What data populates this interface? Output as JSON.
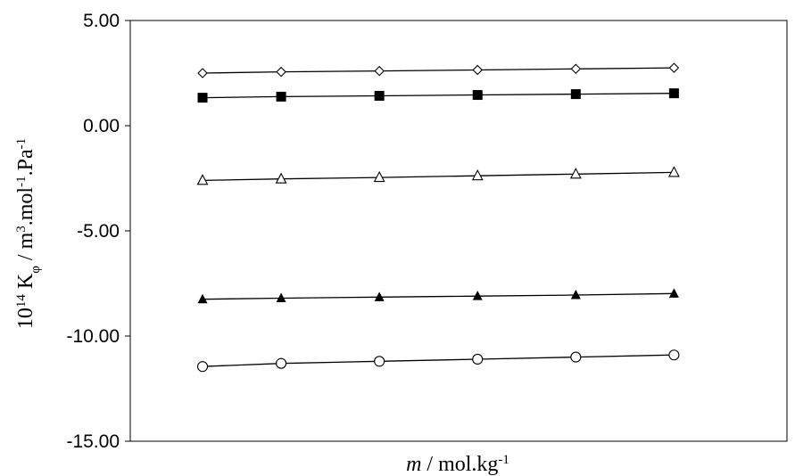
{
  "chart_data": {
    "type": "scatter",
    "title": "",
    "xlabel": {
      "italic": "m",
      "rest": " / mol.kg",
      "sup": "-1"
    },
    "ylabel": {
      "base1": "10",
      "sup1": "14",
      "base2": " K",
      "sub": "φ",
      "base3": " / m",
      "sup2": "3",
      "base4": ".mol",
      "sup3": "-1",
      "base5": ".Pa",
      "sup4": "-1"
    },
    "ylim": [
      -15,
      5
    ],
    "yticks": [
      "5.00",
      "0.00",
      "-5.00",
      "-10.00",
      "-15.00"
    ],
    "xticks_shown": false,
    "grid": false,
    "legend": "none",
    "series": [
      {
        "marker": "diamond-open",
        "x": [
          0.01,
          0.05,
          0.1,
          0.15,
          0.2,
          0.25
        ],
        "values": [
          2.5,
          2.56,
          2.6,
          2.65,
          2.7,
          2.75
        ]
      },
      {
        "marker": "square-filled",
        "x": [
          0.01,
          0.05,
          0.1,
          0.15,
          0.2,
          0.25
        ],
        "values": [
          1.33,
          1.38,
          1.42,
          1.46,
          1.5,
          1.54
        ]
      },
      {
        "marker": "triangle-open",
        "x": [
          0.01,
          0.05,
          0.1,
          0.15,
          0.2,
          0.25
        ],
        "values": [
          -2.6,
          -2.53,
          -2.46,
          -2.38,
          -2.3,
          -2.22
        ]
      },
      {
        "marker": "triangle-filled",
        "x": [
          0.01,
          0.05,
          0.1,
          0.15,
          0.2,
          0.25
        ],
        "values": [
          -8.25,
          -8.2,
          -8.15,
          -8.1,
          -8.05,
          -7.98
        ]
      },
      {
        "marker": "circle-open",
        "x": [
          0.01,
          0.05,
          0.1,
          0.15,
          0.2,
          0.25
        ],
        "values": [
          -11.45,
          -11.3,
          -11.2,
          -11.1,
          -11.0,
          -10.9
        ]
      }
    ]
  }
}
